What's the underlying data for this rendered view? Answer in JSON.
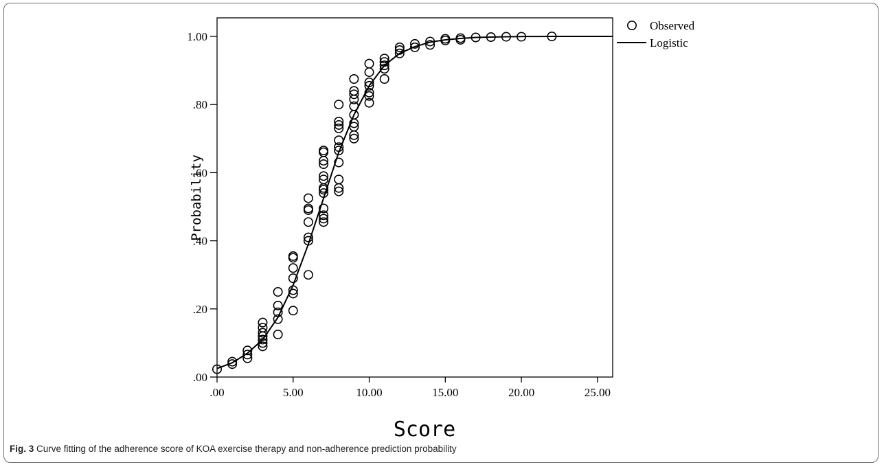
{
  "chart_data": {
    "type": "scatter",
    "xlabel": "Score",
    "ylabel": "Probability",
    "xlim": [
      0,
      26
    ],
    "ylim": [
      0,
      1.05
    ],
    "x_ticks": [
      0,
      5,
      10,
      15,
      20,
      25
    ],
    "x_tick_labels": [
      ".00",
      "5.00",
      "10.00",
      "15.00",
      "20.00",
      "25.00"
    ],
    "y_ticks": [
      0,
      0.2,
      0.4,
      0.6,
      0.8,
      1.0
    ],
    "y_tick_labels": [
      ".00",
      ".20",
      ".40",
      ".60",
      ".80",
      "1.00"
    ],
    "grid": false,
    "legend_position": "top-right, outside plot area",
    "series": [
      {
        "name": "Observed",
        "marker": "open-circle",
        "points": [
          [
            0,
            0.023
          ],
          [
            1,
            0.038
          ],
          [
            1,
            0.045
          ],
          [
            2,
            0.055
          ],
          [
            2,
            0.066
          ],
          [
            2,
            0.078
          ],
          [
            3,
            0.09
          ],
          [
            3,
            0.1
          ],
          [
            3,
            0.11
          ],
          [
            3,
            0.12
          ],
          [
            3,
            0.13
          ],
          [
            3,
            0.145
          ],
          [
            3,
            0.16
          ],
          [
            4,
            0.125
          ],
          [
            4,
            0.17
          ],
          [
            4,
            0.19
          ],
          [
            4,
            0.21
          ],
          [
            4,
            0.25
          ],
          [
            5,
            0.195
          ],
          [
            5,
            0.245
          ],
          [
            5,
            0.255
          ],
          [
            5,
            0.29
          ],
          [
            5,
            0.32
          ],
          [
            5,
            0.35
          ],
          [
            5,
            0.355
          ],
          [
            6,
            0.3
          ],
          [
            6,
            0.4
          ],
          [
            6,
            0.41
          ],
          [
            6,
            0.455
          ],
          [
            6,
            0.49
          ],
          [
            6,
            0.495
          ],
          [
            6,
            0.525
          ],
          [
            7,
            0.455
          ],
          [
            7,
            0.465
          ],
          [
            7,
            0.475
          ],
          [
            7,
            0.495
          ],
          [
            7,
            0.54
          ],
          [
            7,
            0.55
          ],
          [
            7,
            0.555
          ],
          [
            7,
            0.58
          ],
          [
            7,
            0.59
          ],
          [
            7,
            0.625
          ],
          [
            7,
            0.635
          ],
          [
            7,
            0.66
          ],
          [
            7,
            0.665
          ],
          [
            8,
            0.545
          ],
          [
            8,
            0.555
          ],
          [
            8,
            0.58
          ],
          [
            8,
            0.63
          ],
          [
            8,
            0.665
          ],
          [
            8,
            0.675
          ],
          [
            8,
            0.695
          ],
          [
            8,
            0.73
          ],
          [
            8,
            0.74
          ],
          [
            8,
            0.75
          ],
          [
            8,
            0.8
          ],
          [
            9,
            0.7
          ],
          [
            9,
            0.71
          ],
          [
            9,
            0.735
          ],
          [
            9,
            0.745
          ],
          [
            9,
            0.77
          ],
          [
            9,
            0.795
          ],
          [
            9,
            0.815
          ],
          [
            9,
            0.83
          ],
          [
            9,
            0.84
          ],
          [
            9,
            0.875
          ],
          [
            10,
            0.805
          ],
          [
            10,
            0.825
          ],
          [
            10,
            0.835
          ],
          [
            10,
            0.855
          ],
          [
            10,
            0.865
          ],
          [
            10,
            0.895
          ],
          [
            10,
            0.92
          ],
          [
            11,
            0.875
          ],
          [
            11,
            0.905
          ],
          [
            11,
            0.915
          ],
          [
            11,
            0.925
          ],
          [
            11,
            0.935
          ],
          [
            12,
            0.95
          ],
          [
            12,
            0.96
          ],
          [
            12,
            0.968
          ],
          [
            13,
            0.968
          ],
          [
            13,
            0.978
          ],
          [
            14,
            0.975
          ],
          [
            14,
            0.985
          ],
          [
            15,
            0.988
          ],
          [
            15,
            0.993
          ],
          [
            16,
            0.99
          ],
          [
            16,
            0.995
          ],
          [
            17,
            0.997
          ],
          [
            18,
            0.998
          ],
          [
            19,
            0.999
          ],
          [
            20,
            0.999
          ],
          [
            22,
            1.0
          ]
        ]
      },
      {
        "name": "Logistic",
        "marker": "line",
        "x": [
          0,
          1,
          2,
          3,
          4,
          5,
          6,
          7,
          8,
          9,
          10,
          11,
          12,
          13,
          14,
          15,
          16,
          17,
          18,
          19,
          20,
          21,
          22,
          26
        ],
        "y": [
          0.025,
          0.042,
          0.07,
          0.11,
          0.175,
          0.27,
          0.39,
          0.525,
          0.66,
          0.77,
          0.855,
          0.915,
          0.95,
          0.97,
          0.983,
          0.99,
          0.994,
          0.997,
          0.998,
          0.999,
          0.9995,
          0.9998,
          0.9999,
          1.0
        ]
      }
    ]
  },
  "caption": {
    "label": "Fig. 3",
    "text": "Curve fitting of the adherence score of KOA exercise therapy and non-adherence prediction probability"
  }
}
